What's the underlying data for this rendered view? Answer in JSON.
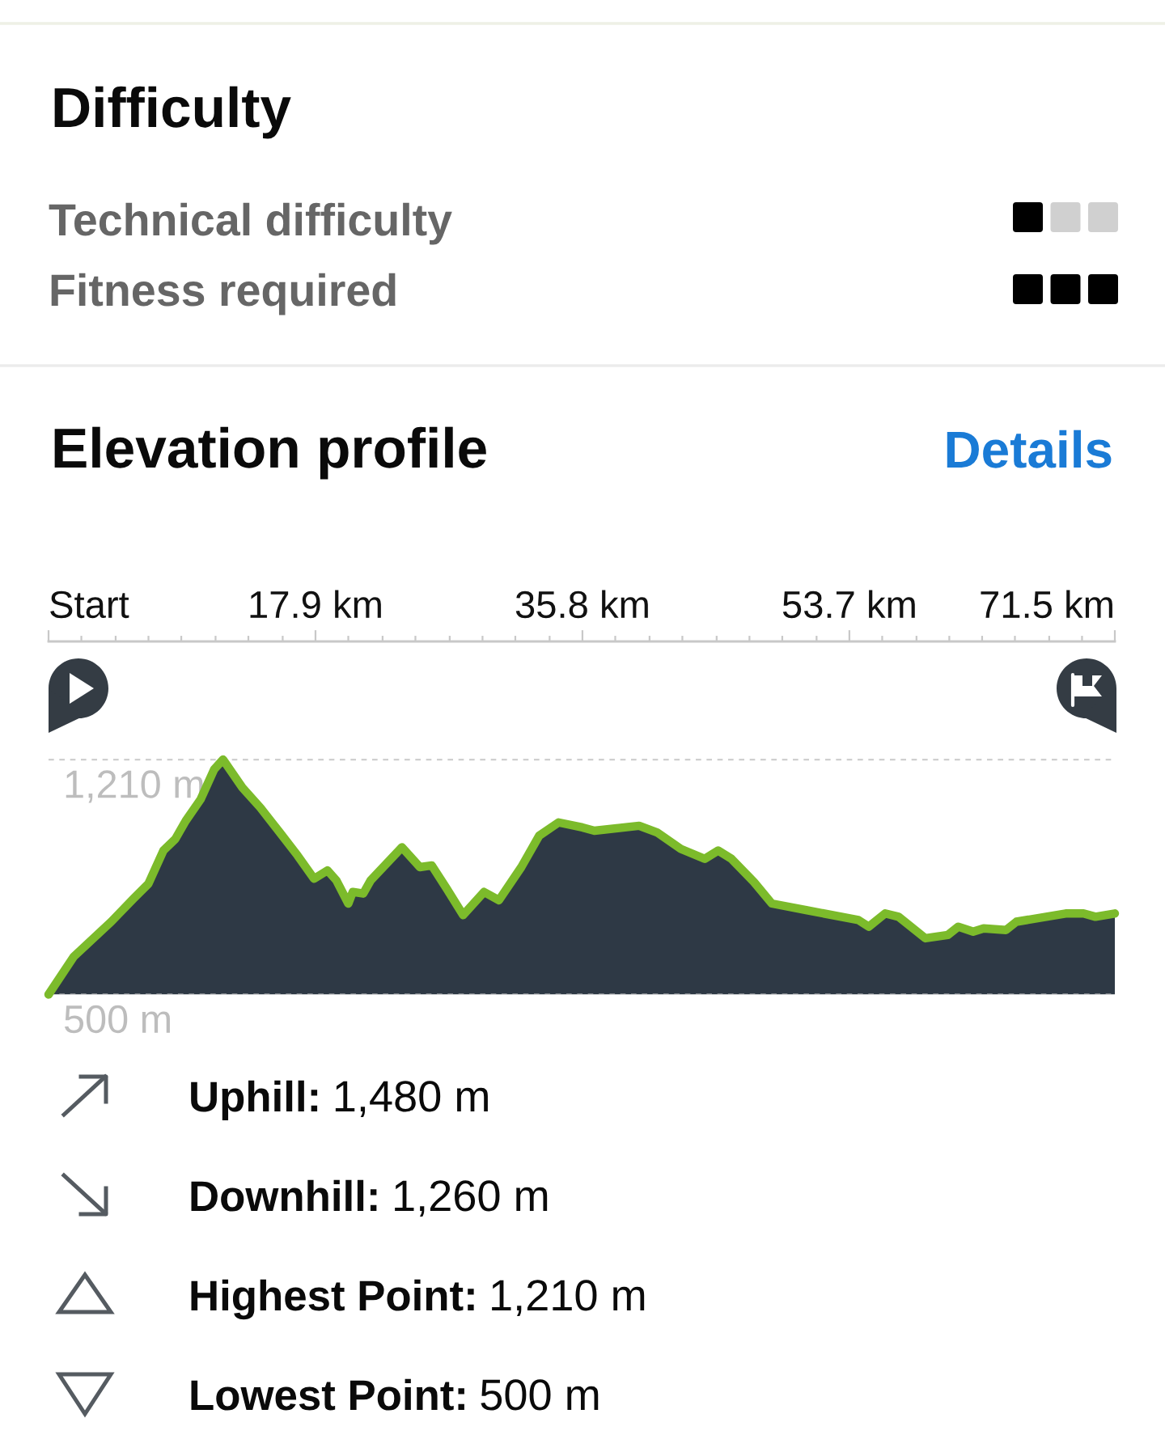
{
  "chart_data": [
    {
      "type": "other",
      "title": "Difficulty",
      "annotations": [
        "Technical difficulty",
        "Fitness required"
      ]
    },
    {
      "type": "area",
      "title": "Elevation profile",
      "annotations": [
        "Details",
        "Uphill:",
        "1,480 m",
        "Downhill:",
        "1,260 m",
        "Highest Point:",
        "1,210 m",
        "Lowest Point:",
        "500 m"
      ],
      "x": [
        0,
        1.7,
        4.2,
        5.7,
        6.7,
        7.7,
        8.5,
        9.2,
        10.2,
        11.1,
        11.7,
        13.0,
        14.2,
        15.5,
        16.7,
        17.8,
        18.7,
        19.3,
        20.1,
        20.4,
        21.1,
        21.6,
        23.7,
        24.9,
        25.7,
        26.7,
        27.8,
        29.2,
        30.2,
        31.7,
        32.9,
        34.2,
        35.8,
        36.6,
        39.6,
        40.8,
        42.4,
        44.0,
        44.9,
        45.8,
        47.3,
        48.5,
        50.8,
        54.3,
        55.0,
        56.1,
        57.0,
        58.8,
        60.3,
        61.0,
        62.0,
        62.7,
        64.2,
        64.9,
        68.2,
        69.4,
        70.2,
        71.5
      ],
      "series": [
        {
          "type": "area",
          "color": "#2e3945",
          "values": [
            500,
            615,
            720,
            790,
            835,
            935,
            970,
            1025,
            1090,
            1180,
            1210,
            1125,
            1065,
            990,
            920,
            850,
            875,
            845,
            775,
            810,
            805,
            845,
            945,
            885,
            890,
            820,
            740,
            810,
            785,
            885,
            980,
            1020,
            1005,
            995,
            1010,
            990,
            940,
            910,
            935,
            910,
            840,
            775,
            755,
            725,
            705,
            745,
            735,
            670,
            680,
            705,
            690,
            700,
            695,
            720,
            745,
            745,
            735,
            745
          ]
        }
      ],
      "xlim": [
        0,
        71.5
      ],
      "xticks": [
        {
          "value": 0,
          "label": "Start"
        },
        {
          "value": 17.9,
          "label": "17.9 km"
        },
        {
          "value": 35.8,
          "label": "35.8 km"
        },
        {
          "value": 53.7,
          "label": "53.7 km"
        },
        {
          "value": 71.5,
          "label": "71.5 km"
        },
        {
          "value": 2.2,
          "label": null
        },
        {
          "value": 4.5,
          "label": null
        },
        {
          "value": 6.7,
          "label": null
        },
        {
          "value": 8.9,
          "label": null
        },
        {
          "value": 11.2,
          "label": null
        },
        {
          "value": 13.4,
          "label": null
        },
        {
          "value": 15.7,
          "label": null
        },
        {
          "value": 20.1,
          "label": null
        },
        {
          "value": 22.4,
          "label": null
        },
        {
          "value": 24.6,
          "label": null
        },
        {
          "value": 26.9,
          "label": null
        },
        {
          "value": 29.1,
          "label": null
        },
        {
          "value": 31.3,
          "label": null
        },
        {
          "value": 33.6,
          "label": null
        },
        {
          "value": 38.0,
          "label": null
        },
        {
          "value": 40.3,
          "label": null
        },
        {
          "value": 42.5,
          "label": null
        },
        {
          "value": 44.8,
          "label": null
        },
        {
          "value": 47.0,
          "label": null
        },
        {
          "value": 49.2,
          "label": null
        },
        {
          "value": 51.5,
          "label": null
        },
        {
          "value": 55.9,
          "label": null
        },
        {
          "value": 58.2,
          "label": null
        },
        {
          "value": 60.4,
          "label": null
        },
        {
          "value": 62.6,
          "label": null
        },
        {
          "value": 64.8,
          "label": null
        },
        {
          "value": 67.1,
          "label": null
        },
        {
          "value": 69.3,
          "label": null
        }
      ],
      "ylim": [
        500,
        1567
      ],
      "yticks": [
        {
          "value": 500,
          "label": "500 m"
        },
        {
          "value": 1210,
          "label": "1,210 m"
        }
      ],
      "grid": "y"
    }
  ]
}
